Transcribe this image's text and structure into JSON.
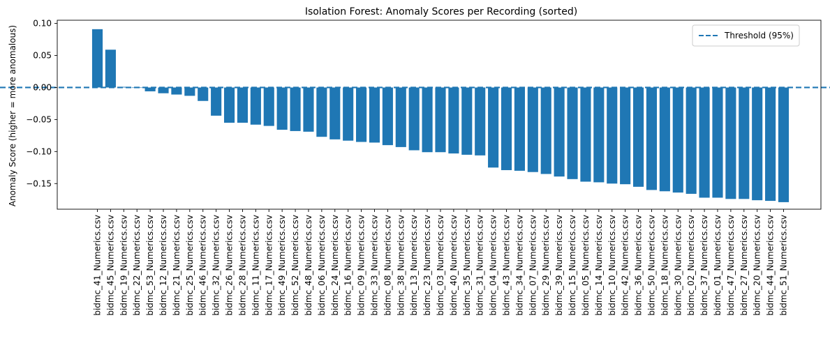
{
  "chart_data": {
    "type": "bar",
    "title": "Isolation Forest: Anomaly Scores per Recording (sorted)",
    "xlabel": "",
    "ylabel": "Anomaly Score (higher = more anomalous)",
    "ylim": [
      -0.19,
      0.105
    ],
    "yticks": [
      0.1,
      0.05,
      0.0,
      -0.05,
      -0.1,
      -0.15
    ],
    "ytick_labels": [
      "0.10",
      "0.05",
      "0.00",
      "−0.05",
      "−0.10",
      "−0.15"
    ],
    "bar_color": "#1f77b4",
    "grid": false,
    "categories": [
      "bidmc_41_Numerics.csv",
      "bidmc_45_Numerics.csv",
      "bidmc_19_Numerics.csv",
      "bidmc_22_Numerics.csv",
      "bidmc_53_Numerics.csv",
      "bidmc_12_Numerics.csv",
      "bidmc_21_Numerics.csv",
      "bidmc_25_Numerics.csv",
      "bidmc_46_Numerics.csv",
      "bidmc_32_Numerics.csv",
      "bidmc_26_Numerics.csv",
      "bidmc_28_Numerics.csv",
      "bidmc_11_Numerics.csv",
      "bidmc_17_Numerics.csv",
      "bidmc_49_Numerics.csv",
      "bidmc_52_Numerics.csv",
      "bidmc_48_Numerics.csv",
      "bidmc_06_Numerics.csv",
      "bidmc_24_Numerics.csv",
      "bidmc_16_Numerics.csv",
      "bidmc_09_Numerics.csv",
      "bidmc_33_Numerics.csv",
      "bidmc_08_Numerics.csv",
      "bidmc_38_Numerics.csv",
      "bidmc_13_Numerics.csv",
      "bidmc_23_Numerics.csv",
      "bidmc_03_Numerics.csv",
      "bidmc_40_Numerics.csv",
      "bidmc_35_Numerics.csv",
      "bidmc_31_Numerics.csv",
      "bidmc_04_Numerics.csv",
      "bidmc_43_Numerics.csv",
      "bidmc_34_Numerics.csv",
      "bidmc_07_Numerics.csv",
      "bidmc_29_Numerics.csv",
      "bidmc_39_Numerics.csv",
      "bidmc_15_Numerics.csv",
      "bidmc_05_Numerics.csv",
      "bidmc_14_Numerics.csv",
      "bidmc_10_Numerics.csv",
      "bidmc_42_Numerics.csv",
      "bidmc_36_Numerics.csv",
      "bidmc_50_Numerics.csv",
      "bidmc_18_Numerics.csv",
      "bidmc_30_Numerics.csv",
      "bidmc_02_Numerics.csv",
      "bidmc_37_Numerics.csv",
      "bidmc_01_Numerics.csv",
      "bidmc_47_Numerics.csv",
      "bidmc_27_Numerics.csv",
      "bidmc_20_Numerics.csv",
      "bidmc_44_Numerics.csv",
      "bidmc_51_Numerics.csv"
    ],
    "values": [
      0.091,
      0.059,
      0.001,
      0.0,
      -0.006,
      -0.009,
      -0.011,
      -0.013,
      -0.021,
      -0.044,
      -0.055,
      -0.055,
      -0.058,
      -0.06,
      -0.066,
      -0.068,
      -0.069,
      -0.077,
      -0.081,
      -0.083,
      -0.085,
      -0.086,
      -0.09,
      -0.093,
      -0.098,
      -0.101,
      -0.101,
      -0.103,
      -0.105,
      -0.106,
      -0.125,
      -0.129,
      -0.13,
      -0.132,
      -0.135,
      -0.139,
      -0.143,
      -0.147,
      -0.148,
      -0.15,
      -0.151,
      -0.155,
      -0.16,
      -0.162,
      -0.164,
      -0.166,
      -0.172,
      -0.172,
      -0.174,
      -0.174,
      -0.176,
      -0.177,
      -0.179
    ],
    "threshold": {
      "value": 0.0,
      "label": "Threshold (95%)",
      "color": "#1f77b4",
      "style": "dashed"
    },
    "legend": {
      "placement": "top-right",
      "entries": [
        "Threshold (95%)"
      ]
    }
  }
}
